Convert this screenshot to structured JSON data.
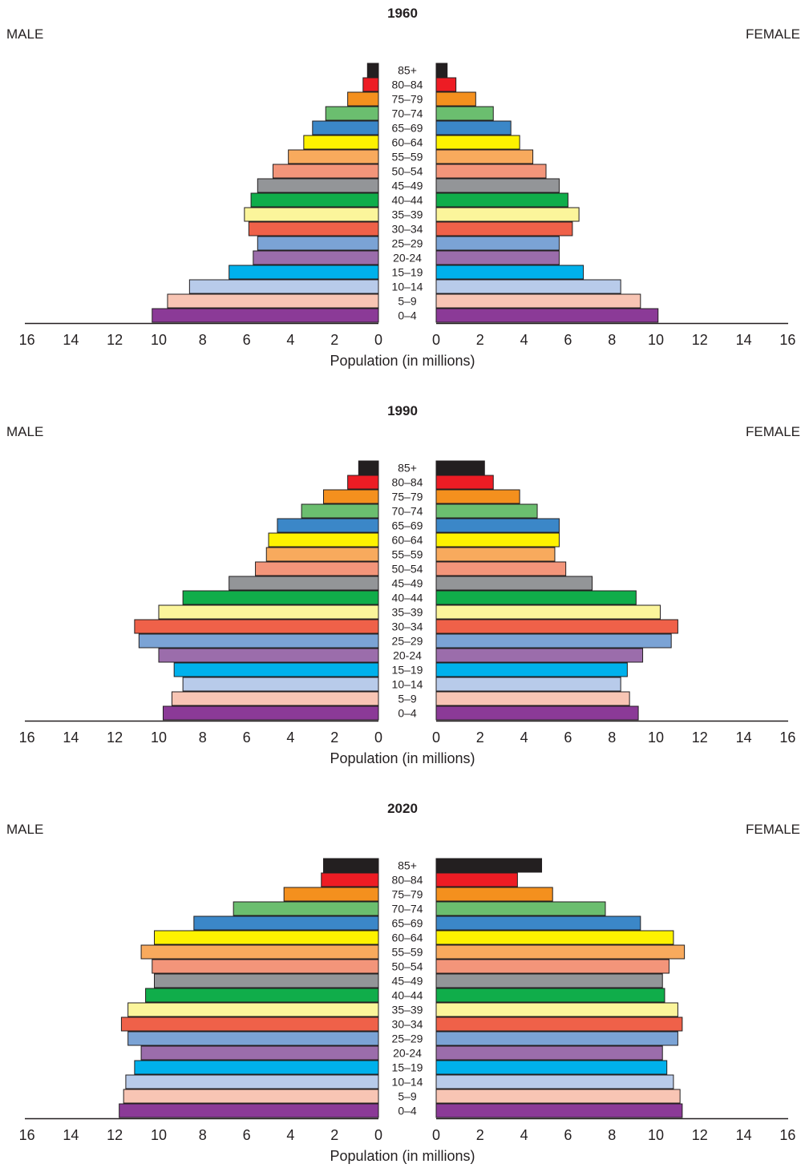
{
  "chart_data": [
    {
      "type": "bar",
      "title": "1960",
      "male_label": "MALE",
      "female_label": "FEMALE",
      "xlabel": "Population (in millions)",
      "xlim": [
        0,
        16
      ],
      "ticks": [
        0,
        2,
        4,
        6,
        8,
        10,
        12,
        14,
        16
      ],
      "categories": [
        "0–4",
        "5–9",
        "10–14",
        "15–19",
        "20-24",
        "25–29",
        "30–34",
        "35–39",
        "40–44",
        "45–49",
        "50–54",
        "55–59",
        "60–64",
        "65–69",
        "70–74",
        "75–79",
        "80–84",
        "85+"
      ],
      "series": [
        {
          "name": "MALE",
          "values": [
            10.3,
            9.6,
            8.6,
            6.8,
            5.7,
            5.5,
            5.9,
            6.1,
            5.8,
            5.5,
            4.8,
            4.1,
            3.4,
            3.0,
            2.4,
            1.4,
            0.7,
            0.5
          ]
        },
        {
          "name": "FEMALE",
          "values": [
            10.1,
            9.3,
            8.4,
            6.7,
            5.6,
            5.6,
            6.2,
            6.5,
            6.0,
            5.6,
            5.0,
            4.4,
            3.8,
            3.4,
            2.6,
            1.8,
            0.9,
            0.5
          ]
        }
      ]
    },
    {
      "type": "bar",
      "title": "1990",
      "male_label": "MALE",
      "female_label": "FEMALE",
      "xlabel": "Population (in millions)",
      "xlim": [
        0,
        16
      ],
      "ticks": [
        0,
        2,
        4,
        6,
        8,
        10,
        12,
        14,
        16
      ],
      "categories": [
        "0–4",
        "5–9",
        "10–14",
        "15–19",
        "20-24",
        "25–29",
        "30–34",
        "35–39",
        "40–44",
        "45–49",
        "50–54",
        "55–59",
        "60–64",
        "65–69",
        "70–74",
        "75–79",
        "80–84",
        "85+"
      ],
      "series": [
        {
          "name": "MALE",
          "values": [
            9.8,
            9.4,
            8.9,
            9.3,
            10.0,
            10.9,
            11.1,
            10.0,
            8.9,
            6.8,
            5.6,
            5.1,
            5.0,
            4.6,
            3.5,
            2.5,
            1.4,
            0.9
          ]
        },
        {
          "name": "FEMALE",
          "values": [
            9.2,
            8.8,
            8.4,
            8.7,
            9.4,
            10.7,
            11.0,
            10.2,
            9.1,
            7.1,
            5.9,
            5.4,
            5.6,
            5.6,
            4.6,
            3.8,
            2.6,
            2.2
          ]
        }
      ]
    },
    {
      "type": "bar",
      "title": "2020",
      "male_label": "MALE",
      "female_label": "FEMALE",
      "xlabel": "Population (in millions)",
      "xlim": [
        0,
        16
      ],
      "ticks": [
        0,
        2,
        4,
        6,
        8,
        10,
        12,
        14,
        16
      ],
      "categories": [
        "0–4",
        "5–9",
        "10–14",
        "15–19",
        "20-24",
        "25–29",
        "30–34",
        "35–39",
        "40–44",
        "45–49",
        "50–54",
        "55–59",
        "60–64",
        "65–69",
        "70–74",
        "75–79",
        "80–84",
        "85+"
      ],
      "series": [
        {
          "name": "MALE",
          "values": [
            11.8,
            11.6,
            11.5,
            11.1,
            10.8,
            11.4,
            11.7,
            11.4,
            10.6,
            10.2,
            10.3,
            10.8,
            10.2,
            8.4,
            6.6,
            4.3,
            2.6,
            2.5
          ]
        },
        {
          "name": "FEMALE",
          "values": [
            11.2,
            11.1,
            10.8,
            10.5,
            10.3,
            11.0,
            11.2,
            11.0,
            10.4,
            10.3,
            10.6,
            11.3,
            10.8,
            9.3,
            7.7,
            5.3,
            3.7,
            4.8
          ]
        }
      ]
    }
  ],
  "colors": [
    "#8b3a97",
    "#f8c5b4",
    "#b8cbea",
    "#00b1ec",
    "#9b6dab",
    "#7ba3d5",
    "#ef6149",
    "#fbf59b",
    "#10ad4a",
    "#939598",
    "#f3957a",
    "#f8aa5d",
    "#fef200",
    "#3b87c8",
    "#6bbe6f",
    "#f4901e",
    "#ed1c24",
    "#231f20"
  ]
}
